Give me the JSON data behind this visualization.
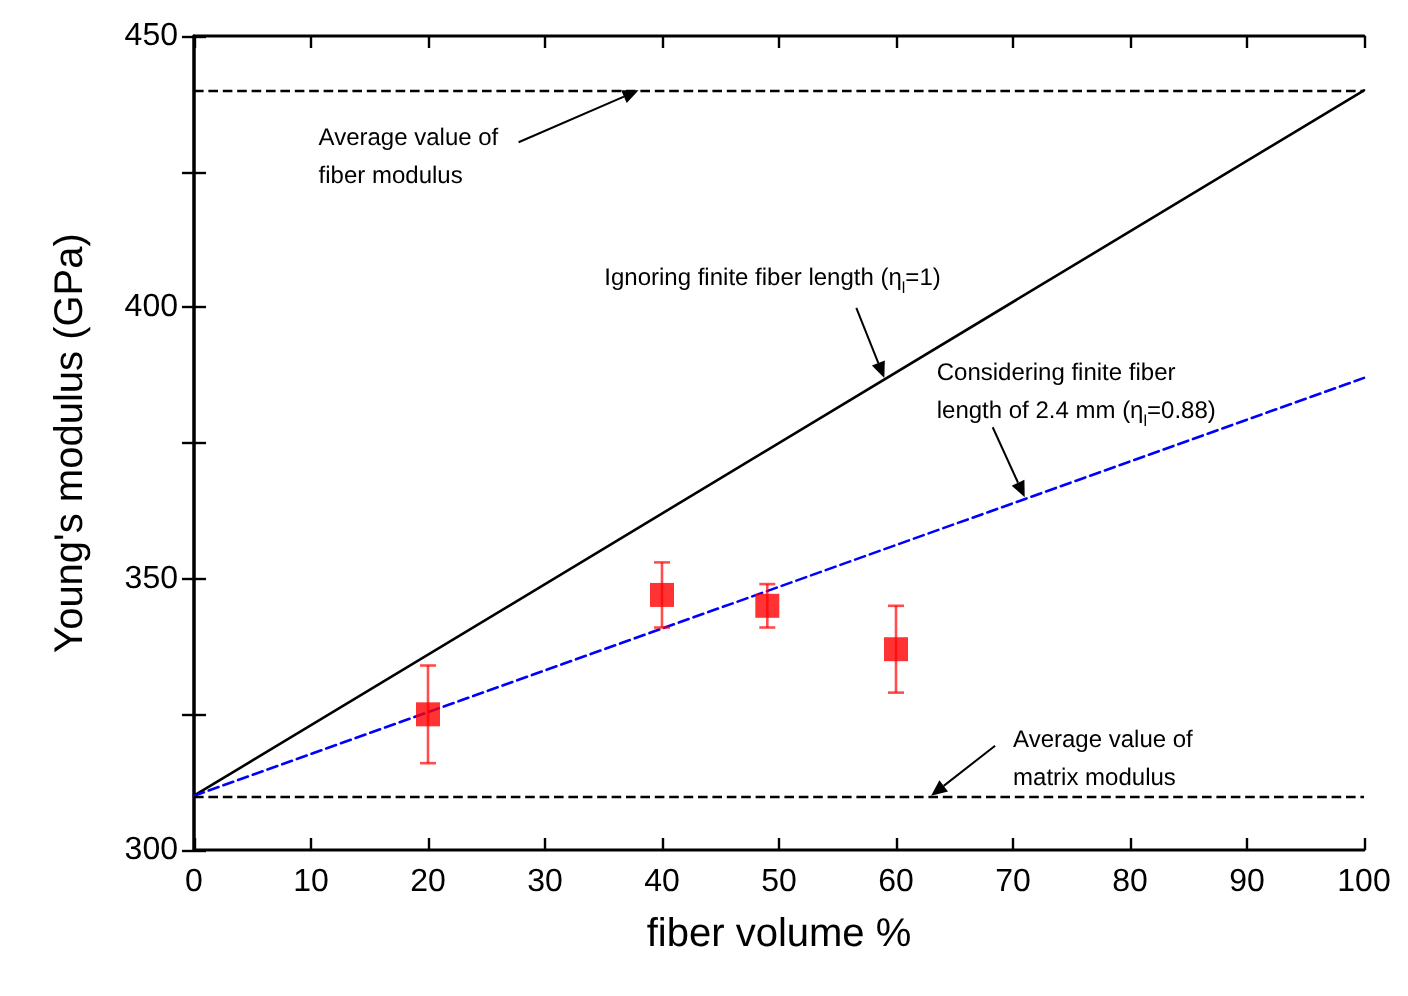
{
  "chart_data": {
    "type": "line",
    "xlabel": "fiber volume %",
    "ylabel": "Young's modulus (GPa)",
    "xlim": [
      0,
      100
    ],
    "xticks": [
      0,
      10,
      20,
      30,
      40,
      50,
      60,
      70,
      80,
      90,
      100
    ],
    "ylim": [
      300,
      450
    ],
    "yticks": [
      300,
      {
        "value": 325,
        "label": null
      },
      350,
      {
        "value": 375,
        "label": null
      },
      400,
      {
        "value": 425,
        "label": null
      },
      450
    ],
    "grid": false,
    "series": [
      {
        "type": "line",
        "color": "#000000",
        "x": [
          0,
          100
        ],
        "values": [
          310,
          440
        ],
        "line_style": "solid",
        "marker": "none"
      },
      {
        "type": "line",
        "color": "#0000ff",
        "x": [
          0,
          100
        ],
        "values": [
          310,
          387
        ],
        "line_style": "dashed",
        "marker": "none"
      },
      {
        "type": "scatter",
        "color": "#ff0000",
        "x": [
          20,
          40,
          49,
          60
        ],
        "values": [
          325,
          347,
          345,
          337
        ],
        "errors": [
          [
            316,
            334
          ],
          [
            341,
            353
          ],
          [
            341,
            349
          ],
          [
            329,
            345
          ]
        ],
        "marker": "square"
      }
    ],
    "ref_lines": [
      {
        "axis": "y",
        "value": 440,
        "color": "#000000",
        "line_style": "dashed"
      },
      {
        "axis": "y",
        "value": 310,
        "color": "#000000",
        "line_style": "dashed"
      }
    ],
    "annotations": [
      {
        "text": "Average value of\nfiber modulus",
        "x": 38,
        "y": 440
      },
      {
        "text": "Ignoring finite fiber length (η$_{l}$=1)",
        "x": 59,
        "y": 387
      },
      {
        "text": "Considering finite fiber\nlength of 2.4 mm (η$_{l}$=0.88)",
        "x": 71,
        "y": 365
      },
      {
        "text": "Average value of\nmatrix modulus",
        "x": 63,
        "y": 310
      }
    ]
  }
}
